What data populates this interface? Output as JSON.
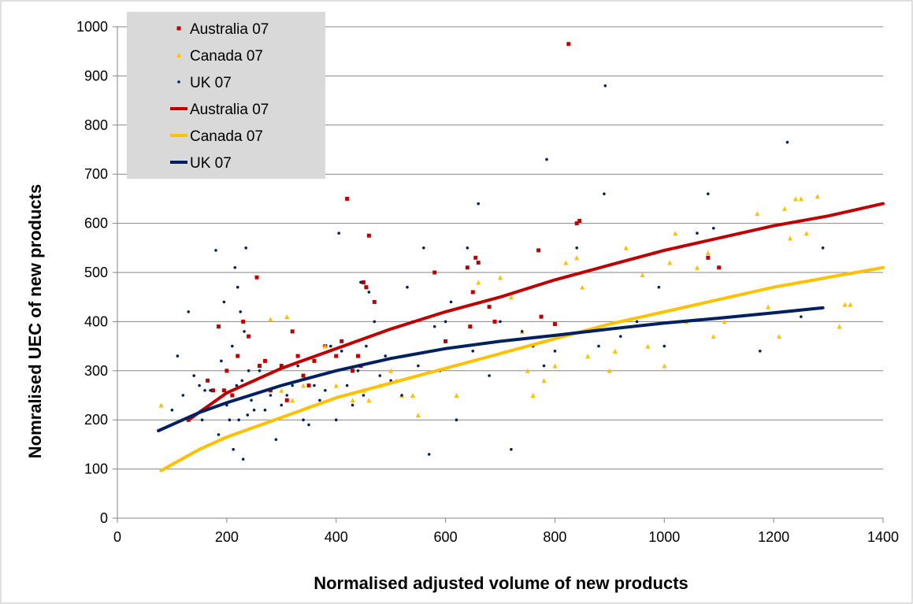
{
  "chart_data": {
    "type": "scatter",
    "xlabel": "Normalised adjusted volume of new products",
    "ylabel": "Nomralised UEC of new products",
    "xlim": [
      0,
      1400
    ],
    "ylim": [
      0,
      1000
    ],
    "x_ticks": [
      "0",
      "200",
      "400",
      "600",
      "800",
      "1000",
      "1200",
      "1400"
    ],
    "y_ticks": [
      "0",
      "100",
      "200",
      "300",
      "400",
      "500",
      "600",
      "700",
      "800",
      "900",
      "1000"
    ],
    "grid": "horizontal",
    "legend_position": "top-left",
    "legend": [
      {
        "label": "Australia 07",
        "kind": "marker",
        "series": "Australia 07",
        "color": "#C00000"
      },
      {
        "label": "Canada 07",
        "kind": "marker",
        "series": "Canada 07",
        "color": "#FFC000"
      },
      {
        "label": "UK 07",
        "kind": "marker",
        "series": "UK 07",
        "color": "#002060"
      },
      {
        "label": "Australia 07",
        "kind": "line",
        "series": "Australia 07",
        "color": "#C00000"
      },
      {
        "label": "Canada 07",
        "kind": "line",
        "series": "Canada 07",
        "color": "#FFC000"
      },
      {
        "label": "UK 07",
        "kind": "line",
        "series": "UK 07",
        "color": "#002060"
      }
    ],
    "series": [
      {
        "name": "Australia 07",
        "color": "#C00000",
        "marker": "square",
        "points": [
          [
            130,
            200
          ],
          [
            165,
            280
          ],
          [
            175,
            260
          ],
          [
            185,
            390
          ],
          [
            195,
            260
          ],
          [
            200,
            300
          ],
          [
            210,
            250
          ],
          [
            220,
            330
          ],
          [
            230,
            400
          ],
          [
            240,
            370
          ],
          [
            255,
            490
          ],
          [
            260,
            310
          ],
          [
            270,
            320
          ],
          [
            280,
            260
          ],
          [
            300,
            310
          ],
          [
            310,
            240
          ],
          [
            320,
            380
          ],
          [
            330,
            330
          ],
          [
            340,
            290
          ],
          [
            350,
            270
          ],
          [
            360,
            320
          ],
          [
            380,
            350
          ],
          [
            400,
            330
          ],
          [
            410,
            360
          ],
          [
            420,
            650
          ],
          [
            430,
            300
          ],
          [
            440,
            330
          ],
          [
            445,
            310
          ],
          [
            450,
            480
          ],
          [
            455,
            470
          ],
          [
            460,
            575
          ],
          [
            470,
            440
          ],
          [
            580,
            500
          ],
          [
            600,
            360
          ],
          [
            640,
            510
          ],
          [
            645,
            390
          ],
          [
            650,
            460
          ],
          [
            655,
            530
          ],
          [
            660,
            520
          ],
          [
            680,
            430
          ],
          [
            690,
            400
          ],
          [
            770,
            545
          ],
          [
            775,
            410
          ],
          [
            800,
            395
          ],
          [
            825,
            965
          ],
          [
            840,
            600
          ],
          [
            845,
            605
          ],
          [
            1080,
            530
          ],
          [
            1100,
            510
          ]
        ]
      },
      {
        "name": "Canada 07",
        "color": "#FFC000",
        "marker": "triangle",
        "points": [
          [
            80,
            230
          ],
          [
            280,
            405
          ],
          [
            300,
            260
          ],
          [
            310,
            410
          ],
          [
            320,
            240
          ],
          [
            340,
            270
          ],
          [
            380,
            350
          ],
          [
            400,
            270
          ],
          [
            430,
            240
          ],
          [
            450,
            260
          ],
          [
            460,
            240
          ],
          [
            480,
            270
          ],
          [
            500,
            300
          ],
          [
            510,
            280
          ],
          [
            520,
            250
          ],
          [
            540,
            250
          ],
          [
            550,
            210
          ],
          [
            620,
            250
          ],
          [
            660,
            480
          ],
          [
            700,
            490
          ],
          [
            720,
            450
          ],
          [
            740,
            380
          ],
          [
            750,
            300
          ],
          [
            760,
            250
          ],
          [
            780,
            280
          ],
          [
            800,
            310
          ],
          [
            820,
            520
          ],
          [
            840,
            530
          ],
          [
            850,
            470
          ],
          [
            860,
            330
          ],
          [
            900,
            300
          ],
          [
            910,
            340
          ],
          [
            930,
            550
          ],
          [
            960,
            495
          ],
          [
            970,
            350
          ],
          [
            980,
            540
          ],
          [
            1000,
            310
          ],
          [
            1010,
            520
          ],
          [
            1020,
            580
          ],
          [
            1040,
            400
          ],
          [
            1060,
            510
          ],
          [
            1080,
            540
          ],
          [
            1090,
            370
          ],
          [
            1110,
            400
          ],
          [
            1170,
            620
          ],
          [
            1190,
            430
          ],
          [
            1210,
            370
          ],
          [
            1220,
            630
          ],
          [
            1230,
            570
          ],
          [
            1240,
            650
          ],
          [
            1250,
            650
          ],
          [
            1260,
            580
          ],
          [
            1280,
            655
          ],
          [
            1320,
            390
          ],
          [
            1330,
            435
          ],
          [
            1340,
            435
          ]
        ]
      },
      {
        "name": "UK 07",
        "color": "#002060",
        "marker": "dot",
        "points": [
          [
            100,
            220
          ],
          [
            110,
            330
          ],
          [
            120,
            250
          ],
          [
            130,
            420
          ],
          [
            140,
            290
          ],
          [
            150,
            270
          ],
          [
            155,
            200
          ],
          [
            160,
            260
          ],
          [
            170,
            260
          ],
          [
            180,
            545
          ],
          [
            185,
            170
          ],
          [
            190,
            320
          ],
          [
            195,
            440
          ],
          [
            200,
            230
          ],
          [
            205,
            200
          ],
          [
            210,
            350
          ],
          [
            212,
            140
          ],
          [
            215,
            510
          ],
          [
            218,
            270
          ],
          [
            220,
            470
          ],
          [
            222,
            200
          ],
          [
            225,
            420
          ],
          [
            228,
            280
          ],
          [
            230,
            120
          ],
          [
            232,
            380
          ],
          [
            235,
            550
          ],
          [
            238,
            210
          ],
          [
            240,
            300
          ],
          [
            245,
            240
          ],
          [
            250,
            220
          ],
          [
            260,
            300
          ],
          [
            270,
            220
          ],
          [
            280,
            250
          ],
          [
            290,
            160
          ],
          [
            300,
            230
          ],
          [
            310,
            250
          ],
          [
            320,
            270
          ],
          [
            330,
            310
          ],
          [
            340,
            200
          ],
          [
            350,
            190
          ],
          [
            360,
            270
          ],
          [
            370,
            240
          ],
          [
            380,
            260
          ],
          [
            390,
            350
          ],
          [
            400,
            200
          ],
          [
            405,
            580
          ],
          [
            410,
            340
          ],
          [
            420,
            270
          ],
          [
            430,
            230
          ],
          [
            440,
            300
          ],
          [
            445,
            480
          ],
          [
            450,
            250
          ],
          [
            455,
            350
          ],
          [
            460,
            460
          ],
          [
            470,
            400
          ],
          [
            480,
            290
          ],
          [
            490,
            330
          ],
          [
            500,
            280
          ],
          [
            520,
            250
          ],
          [
            530,
            470
          ],
          [
            540,
            400
          ],
          [
            550,
            310
          ],
          [
            560,
            550
          ],
          [
            570,
            130
          ],
          [
            580,
            390
          ],
          [
            590,
            300
          ],
          [
            600,
            400
          ],
          [
            610,
            440
          ],
          [
            620,
            200
          ],
          [
            640,
            550
          ],
          [
            650,
            340
          ],
          [
            660,
            640
          ],
          [
            680,
            290
          ],
          [
            700,
            400
          ],
          [
            720,
            140
          ],
          [
            740,
            380
          ],
          [
            760,
            350
          ],
          [
            780,
            310
          ],
          [
            785,
            730
          ],
          [
            800,
            340
          ],
          [
            840,
            550
          ],
          [
            880,
            350
          ],
          [
            890,
            660
          ],
          [
            892,
            880
          ],
          [
            920,
            370
          ],
          [
            950,
            400
          ],
          [
            990,
            470
          ],
          [
            1000,
            350
          ],
          [
            1060,
            580
          ],
          [
            1080,
            660
          ],
          [
            1090,
            590
          ],
          [
            1175,
            340
          ],
          [
            1225,
            765
          ],
          [
            1250,
            410
          ],
          [
            1290,
            550
          ]
        ]
      }
    ],
    "trendlines": [
      {
        "name": "Australia 07",
        "color": "#C00000",
        "x_range": [
          130,
          1400
        ],
        "points": [
          [
            130,
            200
          ],
          [
            200,
            255
          ],
          [
            300,
            305
          ],
          [
            400,
            345
          ],
          [
            500,
            385
          ],
          [
            600,
            420
          ],
          [
            700,
            450
          ],
          [
            800,
            485
          ],
          [
            900,
            515
          ],
          [
            1000,
            545
          ],
          [
            1100,
            570
          ],
          [
            1200,
            595
          ],
          [
            1300,
            615
          ],
          [
            1400,
            640
          ]
        ]
      },
      {
        "name": "Canada 07",
        "color": "#FFC000",
        "x_range": [
          80,
          1400
        ],
        "points": [
          [
            80,
            97
          ],
          [
            150,
            140
          ],
          [
            200,
            165
          ],
          [
            300,
            205
          ],
          [
            400,
            245
          ],
          [
            500,
            275
          ],
          [
            600,
            305
          ],
          [
            700,
            335
          ],
          [
            800,
            365
          ],
          [
            900,
            395
          ],
          [
            1000,
            420
          ],
          [
            1100,
            445
          ],
          [
            1200,
            470
          ],
          [
            1300,
            490
          ],
          [
            1400,
            510
          ]
        ]
      },
      {
        "name": "UK 07",
        "color": "#002060",
        "x_range": [
          75,
          1290
        ],
        "points": [
          [
            75,
            178
          ],
          [
            150,
            215
          ],
          [
            200,
            235
          ],
          [
            300,
            270
          ],
          [
            400,
            300
          ],
          [
            500,
            325
          ],
          [
            600,
            345
          ],
          [
            700,
            360
          ],
          [
            800,
            372
          ],
          [
            900,
            385
          ],
          [
            1000,
            397
          ],
          [
            1100,
            407
          ],
          [
            1200,
            418
          ],
          [
            1290,
            428
          ]
        ]
      }
    ]
  }
}
